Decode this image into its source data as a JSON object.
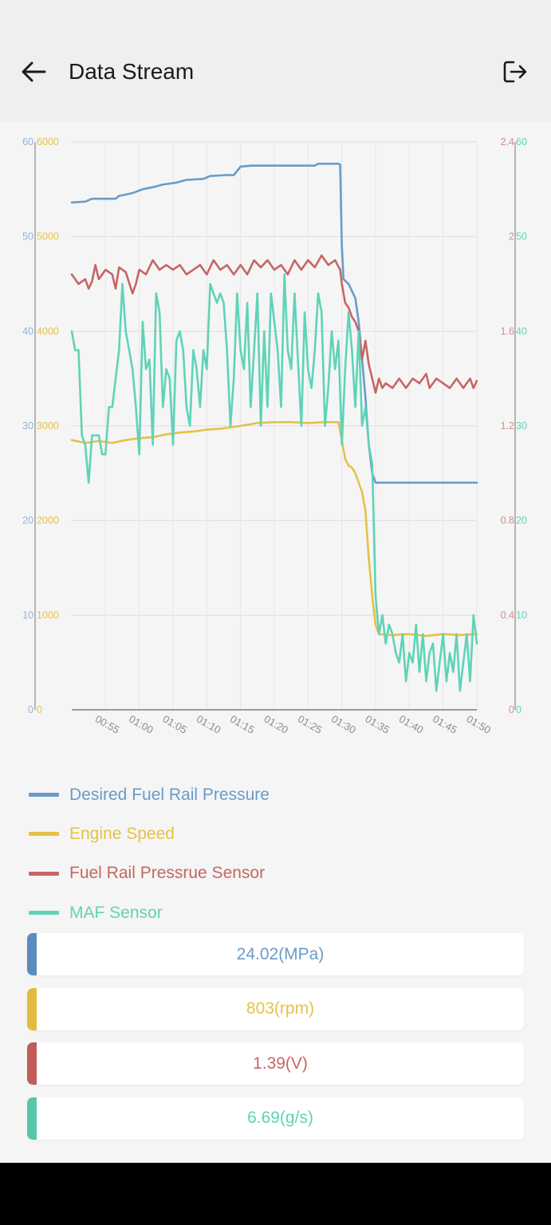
{
  "header": {
    "title": "Data Stream"
  },
  "icons": {
    "back": "arrow-left-icon",
    "exit": "logout-icon"
  },
  "colors": {
    "blue": "#6a9bc7",
    "yellow": "#e6c148",
    "red": "#c56664",
    "teal": "#5fd3b8"
  },
  "chart_data": {
    "type": "line",
    "grid": true,
    "x_ticks": [
      "00:55",
      "01:00",
      "01:05",
      "01:10",
      "01:15",
      "01:20",
      "01:25",
      "01:30",
      "01:35",
      "01:40",
      "01:45",
      "01:50"
    ],
    "xlim": [
      0,
      120
    ],
    "axes": {
      "left_outer": {
        "ticks": [
          "0",
          "10",
          "20",
          "30",
          "40",
          "50",
          "60"
        ],
        "range": [
          0,
          60
        ],
        "color": "#8fb3d6"
      },
      "left_inner": {
        "ticks": [
          "0",
          "1000",
          "2000",
          "3000",
          "4000",
          "5000",
          "6000"
        ],
        "range": [
          0,
          6000
        ],
        "color": "#e6c148"
      },
      "right_inner": {
        "ticks": [
          "0",
          "0.4",
          "0.8",
          "1.2",
          "1.6",
          "2",
          "2.4"
        ],
        "range": [
          0,
          2.4
        ],
        "color": "#d98a88"
      },
      "right_outer": {
        "ticks": [
          "0",
          "10",
          "20",
          "30",
          "40",
          "50",
          "60"
        ],
        "range": [
          0,
          60
        ],
        "color": "#5fd3b8"
      }
    },
    "series": [
      {
        "name": "Desired Fuel Rail Pressure",
        "axis": "left_outer",
        "color": "#6a9bc7",
        "points": [
          [
            0,
            53.6
          ],
          [
            4,
            53.7
          ],
          [
            6,
            54
          ],
          [
            13,
            54
          ],
          [
            14,
            54.3
          ],
          [
            18,
            54.6
          ],
          [
            21,
            55
          ],
          [
            25,
            55.3
          ],
          [
            27,
            55.5
          ],
          [
            31,
            55.7
          ],
          [
            34,
            56
          ],
          [
            39,
            56.1
          ],
          [
            41,
            56.4
          ],
          [
            46,
            56.5
          ],
          [
            48,
            56.5
          ],
          [
            50,
            57.4
          ],
          [
            53,
            57.5
          ],
          [
            60,
            57.5
          ],
          [
            72,
            57.5
          ],
          [
            73,
            57.7
          ],
          [
            79,
            57.7
          ],
          [
            79.5,
            57.6
          ],
          [
            80,
            49
          ],
          [
            80.5,
            45.5
          ],
          [
            82,
            45
          ],
          [
            84,
            43.5
          ],
          [
            85,
            41
          ],
          [
            86,
            37
          ],
          [
            87,
            33
          ],
          [
            88,
            28
          ],
          [
            89,
            25
          ],
          [
            90,
            24
          ],
          [
            95,
            24
          ],
          [
            120,
            24
          ]
        ]
      },
      {
        "name": "Engine Speed",
        "axis": "left_inner",
        "color": "#e6c148",
        "points": [
          [
            0,
            2850
          ],
          [
            4,
            2820
          ],
          [
            8,
            2840
          ],
          [
            12,
            2820
          ],
          [
            16,
            2850
          ],
          [
            20,
            2870
          ],
          [
            24,
            2880
          ],
          [
            28,
            2910
          ],
          [
            32,
            2930
          ],
          [
            36,
            2940
          ],
          [
            40,
            2960
          ],
          [
            44,
            2970
          ],
          [
            48,
            2990
          ],
          [
            50,
            3000
          ],
          [
            55,
            3030
          ],
          [
            60,
            3040
          ],
          [
            65,
            3040
          ],
          [
            70,
            3030
          ],
          [
            75,
            3040
          ],
          [
            79,
            3040
          ],
          [
            80,
            2850
          ],
          [
            81,
            2650
          ],
          [
            82,
            2580
          ],
          [
            83,
            2560
          ],
          [
            84,
            2500
          ],
          [
            85,
            2400
          ],
          [
            86,
            2300
          ],
          [
            87,
            2100
          ],
          [
            88,
            1600
          ],
          [
            89,
            1200
          ],
          [
            90,
            900
          ],
          [
            91,
            800
          ],
          [
            95,
            790
          ],
          [
            100,
            800
          ],
          [
            105,
            780
          ],
          [
            110,
            800
          ],
          [
            115,
            790
          ],
          [
            120,
            800
          ]
        ]
      },
      {
        "name": "Fuel Rail Pressrue Sensor",
        "axis": "right_inner",
        "color": "#c56664",
        "points": [
          [
            0,
            1.84
          ],
          [
            2,
            1.8
          ],
          [
            4,
            1.82
          ],
          [
            5,
            1.78
          ],
          [
            6,
            1.81
          ],
          [
            7,
            1.88
          ],
          [
            8,
            1.82
          ],
          [
            10,
            1.86
          ],
          [
            12,
            1.84
          ],
          [
            13,
            1.78
          ],
          [
            14,
            1.87
          ],
          [
            16,
            1.85
          ],
          [
            18,
            1.76
          ],
          [
            19,
            1.8
          ],
          [
            20,
            1.86
          ],
          [
            22,
            1.84
          ],
          [
            24,
            1.9
          ],
          [
            26,
            1.86
          ],
          [
            28,
            1.88
          ],
          [
            30,
            1.86
          ],
          [
            32,
            1.88
          ],
          [
            34,
            1.84
          ],
          [
            36,
            1.86
          ],
          [
            38,
            1.88
          ],
          [
            40,
            1.84
          ],
          [
            42,
            1.9
          ],
          [
            44,
            1.86
          ],
          [
            46,
            1.88
          ],
          [
            48,
            1.84
          ],
          [
            50,
            1.88
          ],
          [
            52,
            1.84
          ],
          [
            54,
            1.9
          ],
          [
            56,
            1.87
          ],
          [
            58,
            1.9
          ],
          [
            60,
            1.86
          ],
          [
            62,
            1.88
          ],
          [
            64,
            1.84
          ],
          [
            66,
            1.9
          ],
          [
            68,
            1.86
          ],
          [
            70,
            1.9
          ],
          [
            72,
            1.87
          ],
          [
            74,
            1.92
          ],
          [
            76,
            1.88
          ],
          [
            78,
            1.9
          ],
          [
            79.5,
            1.86
          ],
          [
            80,
            1.8
          ],
          [
            81,
            1.72
          ],
          [
            82,
            1.7
          ],
          [
            83,
            1.66
          ],
          [
            84,
            1.64
          ],
          [
            85,
            1.6
          ],
          [
            86,
            1.48
          ],
          [
            87,
            1.56
          ],
          [
            88,
            1.46
          ],
          [
            89,
            1.4
          ],
          [
            90,
            1.34
          ],
          [
            91,
            1.4
          ],
          [
            92,
            1.36
          ],
          [
            93,
            1.38
          ],
          [
            95,
            1.36
          ],
          [
            97,
            1.4
          ],
          [
            99,
            1.36
          ],
          [
            101,
            1.4
          ],
          [
            103,
            1.38
          ],
          [
            105,
            1.42
          ],
          [
            106,
            1.36
          ],
          [
            108,
            1.4
          ],
          [
            110,
            1.38
          ],
          [
            112,
            1.36
          ],
          [
            114,
            1.4
          ],
          [
            116,
            1.36
          ],
          [
            118,
            1.4
          ],
          [
            119,
            1.36
          ],
          [
            120,
            1.39
          ]
        ]
      },
      {
        "name": "MAF Sensor",
        "axis": "right_outer",
        "color": "#5fd3b8",
        "points": [
          [
            0,
            40
          ],
          [
            1,
            38
          ],
          [
            2,
            38
          ],
          [
            3,
            29
          ],
          [
            4,
            28
          ],
          [
            5,
            24
          ],
          [
            6,
            29
          ],
          [
            8,
            29
          ],
          [
            9,
            27
          ],
          [
            10,
            27
          ],
          [
            11,
            32
          ],
          [
            12,
            32
          ],
          [
            13,
            35
          ],
          [
            14,
            38
          ],
          [
            15,
            45
          ],
          [
            16,
            40
          ],
          [
            17,
            38
          ],
          [
            18,
            36
          ],
          [
            19,
            32
          ],
          [
            20,
            27
          ],
          [
            21,
            41
          ],
          [
            22,
            36
          ],
          [
            23,
            37
          ],
          [
            24,
            28
          ],
          [
            25,
            44
          ],
          [
            26,
            42
          ],
          [
            27,
            32
          ],
          [
            28,
            36
          ],
          [
            29,
            35
          ],
          [
            30,
            28
          ],
          [
            31,
            39
          ],
          [
            32,
            40
          ],
          [
            33,
            38
          ],
          [
            34,
            32
          ],
          [
            35,
            30
          ],
          [
            36,
            38
          ],
          [
            37,
            36
          ],
          [
            38,
            32
          ],
          [
            39,
            38
          ],
          [
            40,
            36
          ],
          [
            41,
            45
          ],
          [
            42,
            44
          ],
          [
            43,
            43
          ],
          [
            44,
            44
          ],
          [
            45,
            43
          ],
          [
            46,
            38
          ],
          [
            47,
            30
          ],
          [
            48,
            35
          ],
          [
            49,
            44
          ],
          [
            50,
            38
          ],
          [
            51,
            36
          ],
          [
            52,
            43
          ],
          [
            53,
            32
          ],
          [
            54,
            38
          ],
          [
            55,
            44
          ],
          [
            56,
            30
          ],
          [
            57,
            40
          ],
          [
            58,
            32
          ],
          [
            59,
            44
          ],
          [
            60,
            41
          ],
          [
            61,
            38
          ],
          [
            62,
            32
          ],
          [
            63,
            46
          ],
          [
            64,
            38
          ],
          [
            65,
            36
          ],
          [
            66,
            44
          ],
          [
            67,
            37
          ],
          [
            68,
            30
          ],
          [
            69,
            42
          ],
          [
            70,
            36
          ],
          [
            71,
            34
          ],
          [
            72,
            38
          ],
          [
            73,
            44
          ],
          [
            74,
            42
          ],
          [
            75,
            30
          ],
          [
            76,
            34
          ],
          [
            77,
            40
          ],
          [
            78,
            36
          ],
          [
            79,
            39
          ],
          [
            80,
            28
          ],
          [
            81,
            36
          ],
          [
            82,
            42
          ],
          [
            83,
            38
          ],
          [
            84,
            32
          ],
          [
            85,
            40
          ],
          [
            86,
            30
          ],
          [
            87,
            32
          ],
          [
            88,
            28
          ],
          [
            89,
            26
          ],
          [
            90,
            12
          ],
          [
            91,
            8
          ],
          [
            92,
            10
          ],
          [
            93,
            7
          ],
          [
            94,
            9
          ],
          [
            95,
            8
          ],
          [
            96,
            6
          ],
          [
            97,
            5
          ],
          [
            98,
            8
          ],
          [
            99,
            3
          ],
          [
            100,
            6
          ],
          [
            101,
            5
          ],
          [
            102,
            9
          ],
          [
            103,
            4
          ],
          [
            104,
            8
          ],
          [
            105,
            3
          ],
          [
            106,
            6
          ],
          [
            107,
            7
          ],
          [
            108,
            2
          ],
          [
            109,
            5
          ],
          [
            110,
            8
          ],
          [
            111,
            3
          ],
          [
            112,
            6
          ],
          [
            113,
            4
          ],
          [
            114,
            8
          ],
          [
            115,
            2
          ],
          [
            116,
            5
          ],
          [
            117,
            8
          ],
          [
            118,
            3
          ],
          [
            119,
            10
          ],
          [
            120,
            7
          ]
        ]
      }
    ]
  },
  "legend": [
    {
      "label": "Desired Fuel Rail Pressure",
      "color": "#6a9bc7"
    },
    {
      "label": "Engine Speed",
      "color": "#e6c148"
    },
    {
      "label": "Fuel Rail Pressrue Sensor",
      "color": "#c56664"
    },
    {
      "label": "MAF Sensor",
      "color": "#5fd3b8"
    }
  ],
  "readouts": [
    {
      "value": "24.02(MPa)",
      "color": "#6a9bc7",
      "bar": "#5b8cc0"
    },
    {
      "value": "803(rpm)",
      "color": "#e6c148",
      "bar": "#e3bb3c"
    },
    {
      "value": "1.39(V)",
      "color": "#c56664",
      "bar": "#c25b59"
    },
    {
      "value": "6.69(g/s)",
      "color": "#5fd3b8",
      "bar": "#55c7a8"
    }
  ]
}
